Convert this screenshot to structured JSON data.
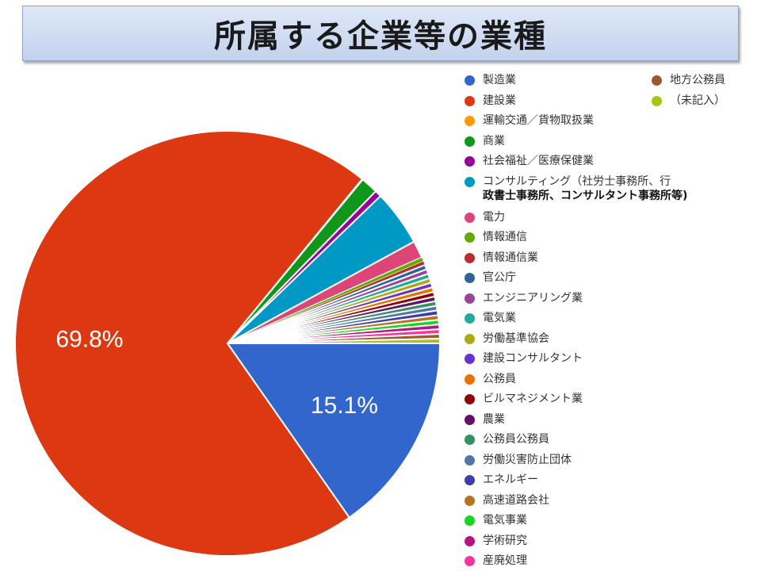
{
  "title": "所属する企業等の業種",
  "chart_data": {
    "type": "pie",
    "title": "所属する企業等の業種",
    "legend_position": "right",
    "slices": [
      {
        "label": "製造業",
        "value": 15.1,
        "color": "#3366cc",
        "data_label": "15.1%"
      },
      {
        "label": "建設業",
        "value": 69.8,
        "color": "#dc3912",
        "data_label": "69.8%"
      },
      {
        "label": "運輸交通／貨物取扱業",
        "value": 0.05,
        "color": "#ff9900"
      },
      {
        "label": "商業",
        "value": 1.3,
        "color": "#109618"
      },
      {
        "label": "社会福祉／医療保健業",
        "value": 0.5,
        "color": "#990099"
      },
      {
        "label": "コンサルティング（社労士事務所、行\n政書士事務所、コンサルタント事務所等)",
        "value": 4.2,
        "color": "#0099c6"
      },
      {
        "label": "電力",
        "value": 1.3,
        "color": "#dd4477"
      },
      {
        "label": "情報通信",
        "value": 0.3,
        "color": "#66aa00"
      },
      {
        "label": "情報通信業",
        "value": 0.3,
        "color": "#b82e2e"
      },
      {
        "label": "官公庁",
        "value": 0.35,
        "color": "#316395"
      },
      {
        "label": "エンジニアリング業",
        "value": 0.35,
        "color": "#994499"
      },
      {
        "label": "電気業",
        "value": 0.35,
        "color": "#22aa99"
      },
      {
        "label": "労働基準協会",
        "value": 0.35,
        "color": "#aaaa11"
      },
      {
        "label": "建設コンサルタント",
        "value": 0.35,
        "color": "#6633cc"
      },
      {
        "label": "公務員",
        "value": 0.35,
        "color": "#e67300"
      },
      {
        "label": "ビルマネジメント業",
        "value": 0.35,
        "color": "#8b0707"
      },
      {
        "label": "農業",
        "value": 0.35,
        "color": "#651067"
      },
      {
        "label": "公務員公務員",
        "value": 0.35,
        "color": "#329262"
      },
      {
        "label": "労働災害防止団体",
        "value": 0.35,
        "color": "#5574a6"
      },
      {
        "label": "エネルギー",
        "value": 0.35,
        "color": "#3b3eac"
      },
      {
        "label": "高速道路会社",
        "value": 0.35,
        "color": "#b77322"
      },
      {
        "label": "電気事業",
        "value": 0.35,
        "color": "#16d620"
      },
      {
        "label": "学術研究",
        "value": 0.35,
        "color": "#b91383"
      },
      {
        "label": "産廃処理",
        "value": 0.35,
        "color": "#f4359e"
      },
      {
        "label": "地方公務員",
        "value": 0.35,
        "color": "#9c5935"
      },
      {
        "label": "（未記入）",
        "value": 0.35,
        "color": "#a9c413"
      }
    ]
  }
}
